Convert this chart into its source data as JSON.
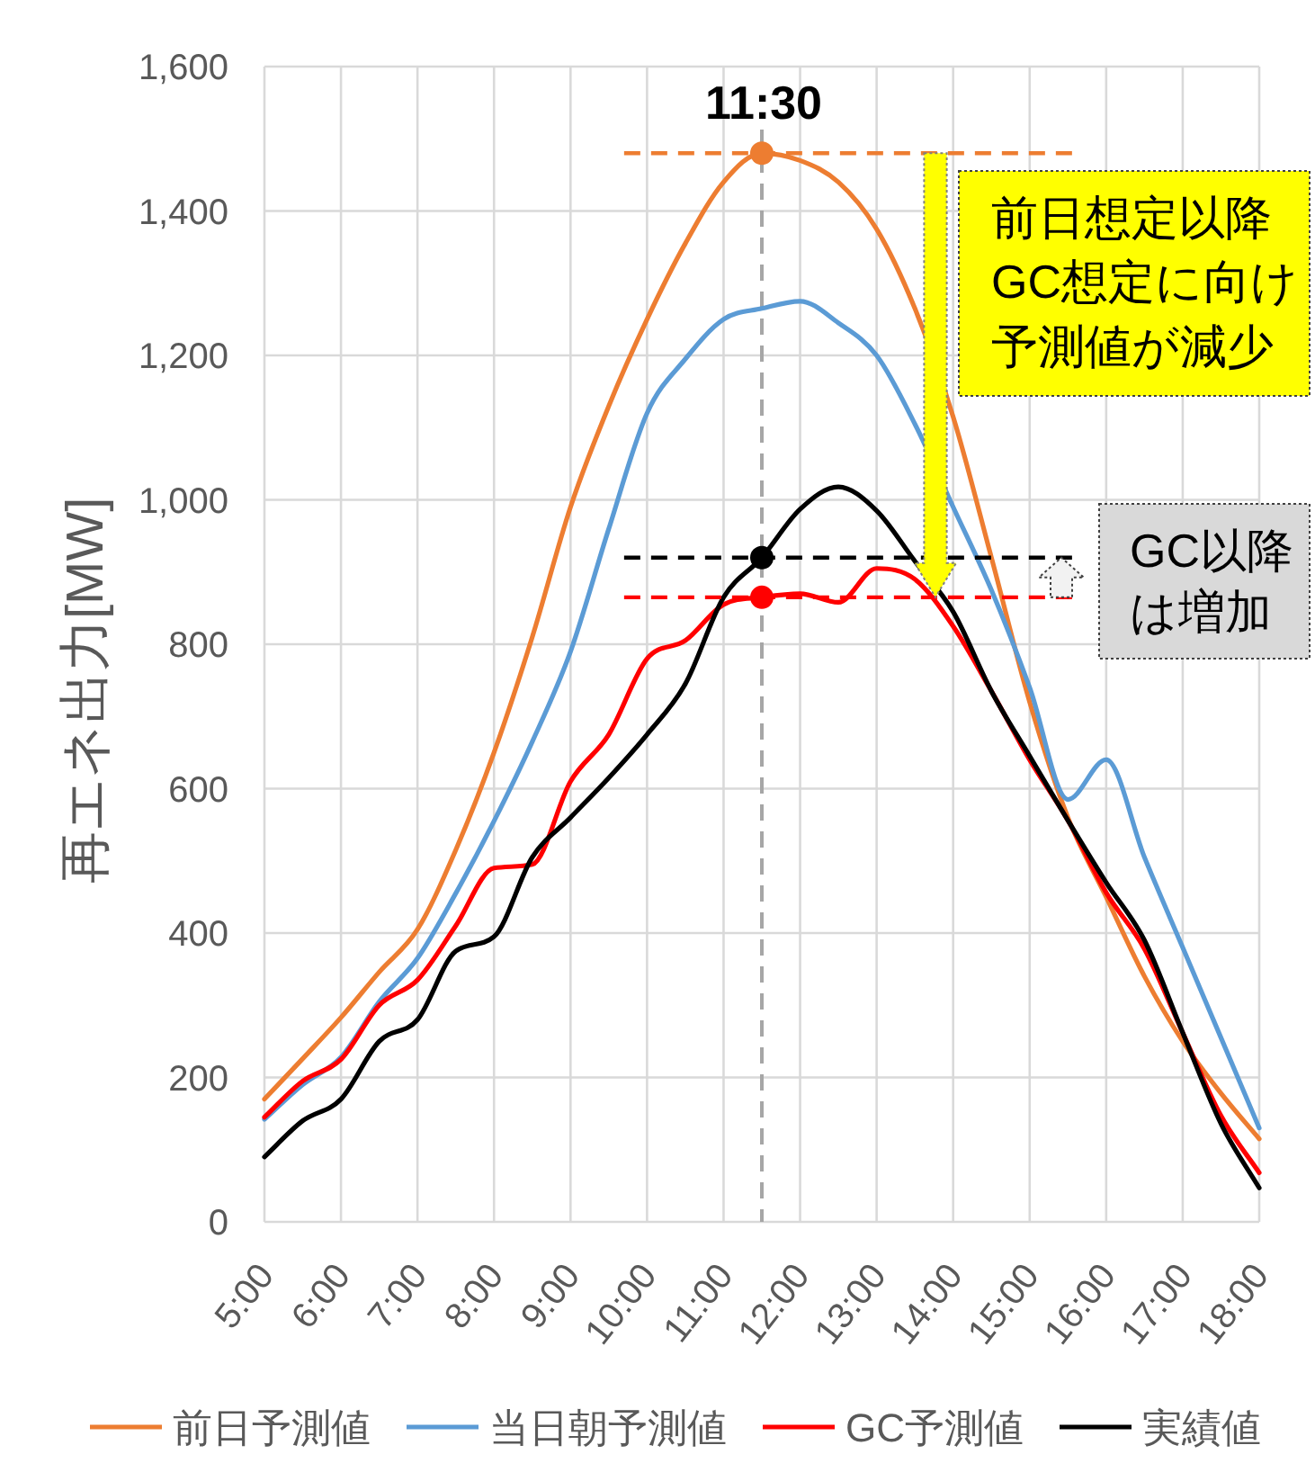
{
  "chart_data": {
    "type": "line",
    "ylabel": "再エネ出力[MW]",
    "x": [
      5,
      5.5,
      6,
      6.5,
      7,
      7.5,
      8,
      8.5,
      9,
      9.5,
      10,
      10.5,
      11,
      11.5,
      12,
      12.5,
      13,
      13.5,
      14,
      14.5,
      15,
      15.5,
      16,
      16.5,
      17,
      17.5,
      18
    ],
    "xlim": [
      5,
      18
    ],
    "xticks": [
      {
        "value": 5,
        "label": "5:00"
      },
      {
        "value": 6,
        "label": "6:00"
      },
      {
        "value": 7,
        "label": "7:00"
      },
      {
        "value": 8,
        "label": "8:00"
      },
      {
        "value": 9,
        "label": "9:00"
      },
      {
        "value": 10,
        "label": "10:00"
      },
      {
        "value": 11,
        "label": "11:00"
      },
      {
        "value": 12,
        "label": "12:00"
      },
      {
        "value": 13,
        "label": "13:00"
      },
      {
        "value": 14,
        "label": "14:00"
      },
      {
        "value": 15,
        "label": "15:00"
      },
      {
        "value": 16,
        "label": "16:00"
      },
      {
        "value": 17,
        "label": "17:00"
      },
      {
        "value": 18,
        "label": "18:00"
      }
    ],
    "ylim": [
      0,
      1600
    ],
    "yticks": [
      0,
      200,
      400,
      600,
      800,
      {
        "value": 1000,
        "label": "1,000"
      },
      {
        "value": 1200,
        "label": "1,200"
      },
      {
        "value": 1400,
        "label": "1,400"
      },
      {
        "value": 1600,
        "label": "1,600"
      }
    ],
    "grid": true,
    "legend": "bottom",
    "series": [
      {
        "name": "前日予測値",
        "color": "#ed7d31",
        "values": [
          170,
          226,
          283,
          346,
          405,
          515,
          650,
          810,
          990,
          1130,
          1250,
          1355,
          1440,
          1480,
          1470,
          1440,
          1375,
          1265,
          1115,
          920,
          720,
          560,
          450,
          340,
          250,
          178,
          115
        ]
      },
      {
        "name": "当日朝予測値",
        "color": "#5b9bd5",
        "values": [
          142,
          190,
          228,
          305,
          365,
          455,
          555,
          665,
          790,
          960,
          1120,
          1195,
          1250,
          1265,
          1275,
          1245,
          1200,
          1105,
          990,
          875,
          740,
          585,
          640,
          505,
          380,
          255,
          130
        ]
      },
      {
        "name": "GC予測値",
        "color": "#ff0000",
        "values": [
          145,
          195,
          225,
          300,
          335,
          410,
          490,
          495,
          610,
          675,
          780,
          805,
          855,
          865,
          870,
          858,
          905,
          890,
          825,
          735,
          640,
          556,
          456,
          378,
          262,
          147,
          68
        ]
      },
      {
        "name": "実績値",
        "color": "#000000",
        "values": [
          90,
          140,
          170,
          250,
          280,
          375,
          395,
          505,
          560,
          615,
          675,
          745,
          865,
          920,
          987,
          1018,
          985,
          915,
          845,
          735,
          645,
          556,
          470,
          390,
          262,
          136,
          47
        ]
      },
      {
        "type": "line",
        "color": "#ed7d31",
        "x": [
          9.7,
          15.6
        ],
        "values": [
          1480,
          1480
        ],
        "line_style": "dashed"
      },
      {
        "type": "line",
        "color": "#000000",
        "x": [
          9.7,
          15.6
        ],
        "values": [
          920,
          920
        ],
        "line_style": "dashed"
      },
      {
        "type": "line",
        "color": "#ff0000",
        "x": [
          9.7,
          15.6
        ],
        "values": [
          865,
          865
        ],
        "line_style": "dashed"
      },
      {
        "type": "scatter",
        "x": [
          11.5,
          11.5,
          11.5
        ],
        "values": [
          1480,
          920,
          865
        ],
        "colors": [
          "#ed7d31",
          "#000000",
          "#ff0000"
        ],
        "marker": "circle"
      }
    ],
    "ref_lines": [
      {
        "axis": "x",
        "value": 11.5,
        "label": "11:30",
        "color": "#a6a6a6",
        "line_style": "dashed"
      }
    ],
    "annotations": [
      "前日想定以降GC想定に向け予測値が減少",
      "GC以降は増加"
    ]
  }
}
